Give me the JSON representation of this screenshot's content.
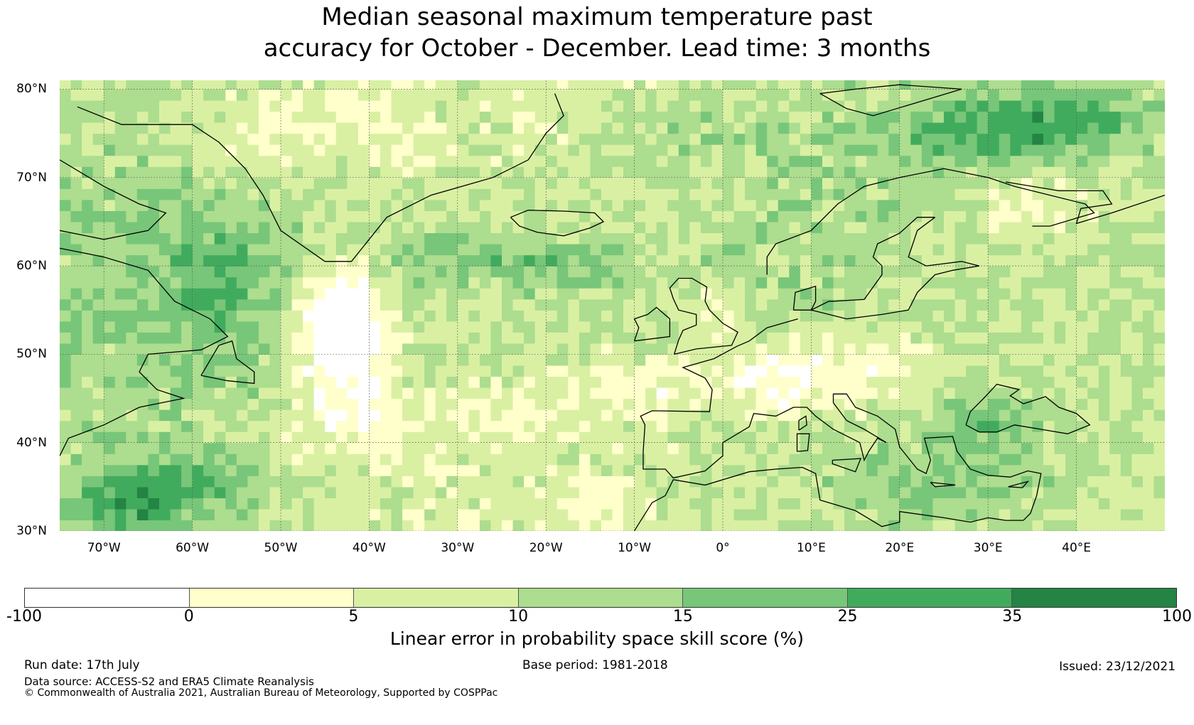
{
  "title": {
    "line1": "Median seasonal maximum temperature past",
    "line2": "accuracy for October - December. Lead time: 3 months"
  },
  "map": {
    "lat_labels": [
      "80°N",
      "70°N",
      "60°N",
      "50°N",
      "40°N",
      "30°N"
    ],
    "lon_labels": [
      "70°W",
      "60°W",
      "50°W",
      "40°W",
      "30°W",
      "20°W",
      "10°W",
      "0°",
      "10°E",
      "20°E",
      "30°E",
      "40°E"
    ]
  },
  "colorbar": {
    "colors": [
      "#ffffff",
      "#ffffcc",
      "#d9f0a3",
      "#addd8e",
      "#78c679",
      "#41ab5d",
      "#238443"
    ],
    "tick_labels": [
      "-100",
      "0",
      "5",
      "10",
      "15",
      "25",
      "35",
      "100"
    ],
    "title": "Linear error in probability space skill score (%)"
  },
  "footer": {
    "run_date": "Run date: 17th July",
    "base_period": "Base period: 1981-2018",
    "issued": "Issued: 23/12/2021",
    "data_source": "Data source: ACCESS-S2 and ERA5 Climate Reanalysis",
    "copyright": "© Commonwealth of Australia 2021, Australian Bureau of Meteorology, Supported by COSPPac"
  }
}
